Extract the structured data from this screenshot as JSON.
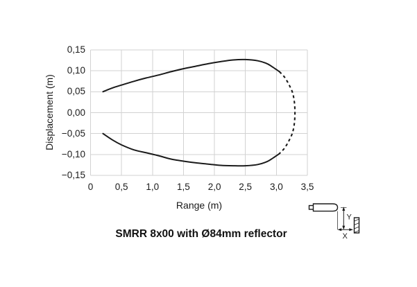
{
  "chart_data": {
    "type": "line",
    "title": "",
    "xlabel": "Range (m)",
    "ylabel": "Displacement (m)",
    "xlim": [
      0,
      3.5
    ],
    "ylim": [
      -0.15,
      0.15
    ],
    "grid": true,
    "legend": "none",
    "xticks": [
      {
        "value": 0,
        "label": "0"
      },
      {
        "value": 0.5,
        "label": "0,5"
      },
      {
        "value": 1.0,
        "label": "1,0"
      },
      {
        "value": 1.5,
        "label": "1,5"
      },
      {
        "value": 2.0,
        "label": "2,0"
      },
      {
        "value": 2.5,
        "label": "2,5"
      },
      {
        "value": 3.0,
        "label": "3,0"
      },
      {
        "value": 3.5,
        "label": "3,5"
      }
    ],
    "yticks": [
      {
        "value": 0.15,
        "label": "0,15"
      },
      {
        "value": 0.1,
        "label": "0,10"
      },
      {
        "value": 0.05,
        "label": "0,05"
      },
      {
        "value": 0.0,
        "label": "0,00"
      },
      {
        "value": -0.05,
        "label": "−0,05"
      },
      {
        "value": -0.1,
        "label": "−0,10"
      },
      {
        "value": -0.15,
        "label": "−0,15"
      }
    ],
    "series": [
      {
        "name": "upper-boundary",
        "style": "solid",
        "points": [
          [
            0.2,
            0.05
          ],
          [
            0.35,
            0.059
          ],
          [
            0.5,
            0.066
          ],
          [
            0.7,
            0.075
          ],
          [
            0.9,
            0.083
          ],
          [
            1.1,
            0.09
          ],
          [
            1.3,
            0.098
          ],
          [
            1.5,
            0.105
          ],
          [
            1.7,
            0.111
          ],
          [
            1.9,
            0.117
          ],
          [
            2.1,
            0.122
          ],
          [
            2.3,
            0.126
          ],
          [
            2.5,
            0.127
          ],
          [
            2.7,
            0.124
          ],
          [
            2.85,
            0.117
          ],
          [
            2.95,
            0.108
          ],
          [
            3.05,
            0.098
          ]
        ]
      },
      {
        "name": "max-range-arc",
        "style": "dashed",
        "points": [
          [
            3.05,
            0.098
          ],
          [
            3.13,
            0.085
          ],
          [
            3.2,
            0.068
          ],
          [
            3.26,
            0.048
          ],
          [
            3.29,
            0.025
          ],
          [
            3.3,
            0.0
          ],
          [
            3.29,
            -0.025
          ],
          [
            3.26,
            -0.048
          ],
          [
            3.2,
            -0.068
          ],
          [
            3.13,
            -0.085
          ],
          [
            3.05,
            -0.098
          ]
        ]
      },
      {
        "name": "lower-boundary",
        "style": "solid",
        "points": [
          [
            3.05,
            -0.098
          ],
          [
            2.95,
            -0.108
          ],
          [
            2.85,
            -0.117
          ],
          [
            2.7,
            -0.124
          ],
          [
            2.5,
            -0.127
          ],
          [
            2.3,
            -0.127
          ],
          [
            2.1,
            -0.126
          ],
          [
            1.9,
            -0.123
          ],
          [
            1.7,
            -0.12
          ],
          [
            1.5,
            -0.116
          ],
          [
            1.3,
            -0.111
          ],
          [
            1.1,
            -0.103
          ],
          [
            0.9,
            -0.096
          ],
          [
            0.7,
            -0.089
          ],
          [
            0.5,
            -0.077
          ],
          [
            0.35,
            -0.065
          ],
          [
            0.2,
            -0.05
          ]
        ]
      }
    ]
  },
  "caption": "SMRR 8x00 with Ø84mm reflector",
  "diagram": {
    "y_label": "Y",
    "x_label": "X"
  }
}
